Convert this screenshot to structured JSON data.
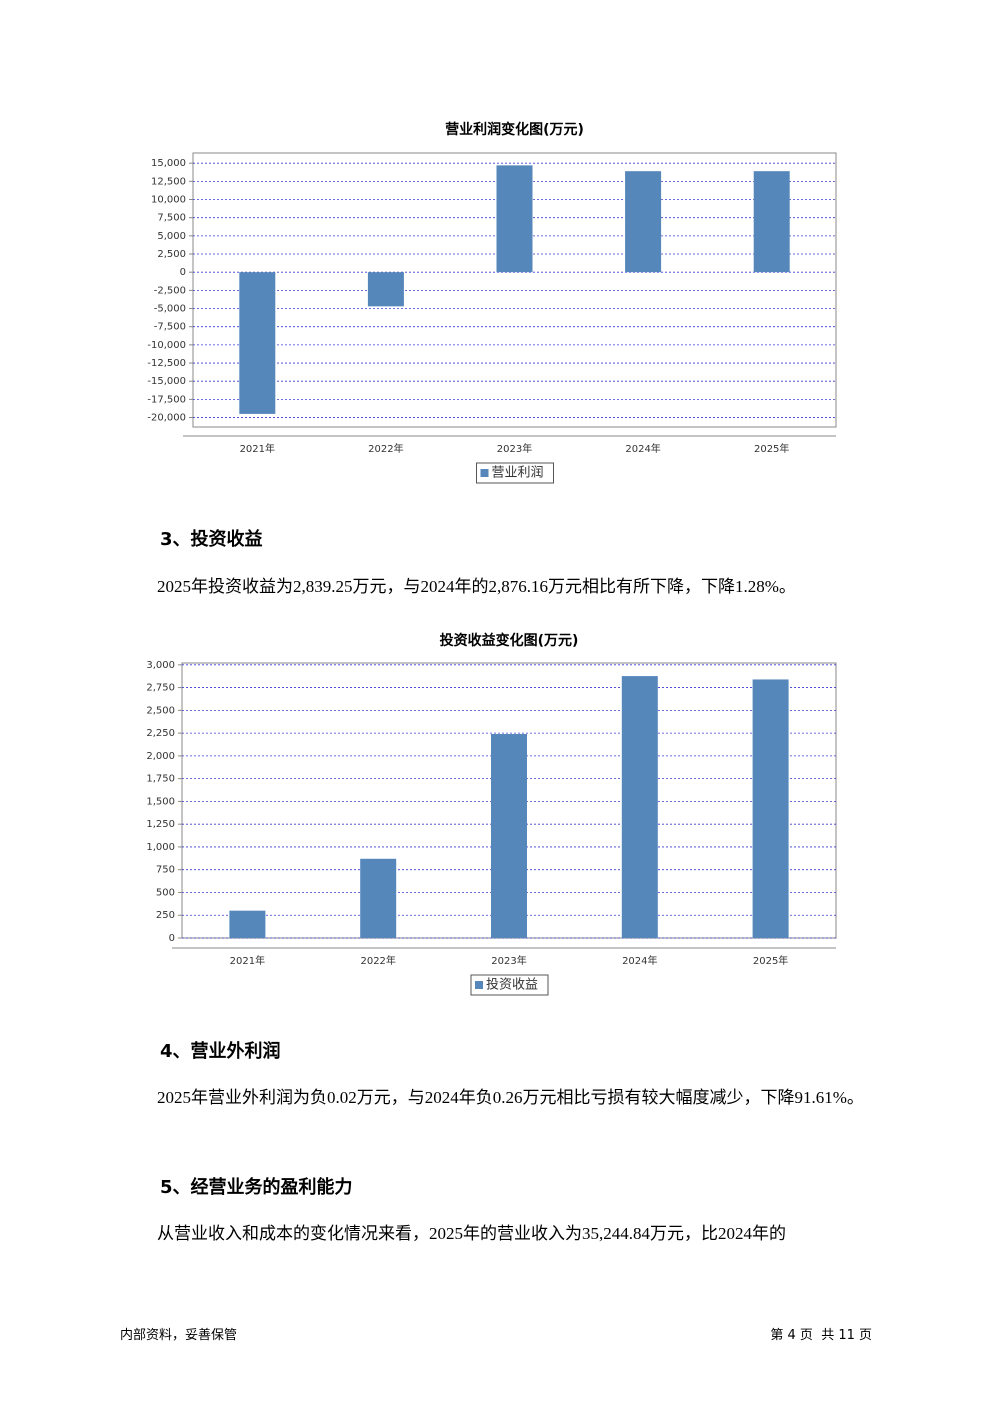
{
  "chart_data": [
    {
      "type": "bar",
      "title": "营业利润变化图(万元)",
      "categories": [
        "2021年",
        "2022年",
        "2023年",
        "2024年",
        "2025年"
      ],
      "series": [
        {
          "name": "营业利润",
          "color": "#5587bb",
          "values": [
            -19500,
            -4700,
            14700,
            13900,
            13900
          ]
        }
      ],
      "ylim": [
        -21300,
        16400
      ],
      "yticks": [
        {
          "value": 15000,
          "label": "15,000"
        },
        {
          "value": 12500,
          "label": "12,500"
        },
        {
          "value": 10000,
          "label": "10,000"
        },
        {
          "value": 7500,
          "label": "7,500"
        },
        {
          "value": 5000,
          "label": "5,000"
        },
        {
          "value": 2500,
          "label": "2,500"
        },
        0,
        {
          "value": -2500,
          "label": "-2,500"
        },
        {
          "value": -5000,
          "label": "-5,000"
        },
        {
          "value": -7500,
          "label": "-7,500"
        },
        {
          "value": -10000,
          "label": "-10,000"
        },
        {
          "value": -12500,
          "label": "-12,500"
        },
        {
          "value": -15000,
          "label": "-15,000"
        },
        {
          "value": -17500,
          "label": "-17,500"
        },
        {
          "value": -20000,
          "label": "-20,000"
        }
      ],
      "grid": true
    },
    {
      "type": "bar",
      "title": "投资收益变化图(万元)",
      "categories": [
        "2021年",
        "2022年",
        "2023年",
        "2024年",
        "2025年"
      ],
      "series": [
        {
          "name": "投资收益",
          "color": "#5587bb",
          "values": [
            300,
            870,
            2240,
            2876.16,
            2839.25
          ]
        }
      ],
      "ylim": [
        0,
        3020
      ],
      "yticks": [
        0,
        250,
        500,
        750,
        {
          "value": 1000,
          "label": "1,000"
        },
        {
          "value": 1250,
          "label": "1,250"
        },
        {
          "value": 1500,
          "label": "1,500"
        },
        {
          "value": 1750,
          "label": "1,750"
        },
        {
          "value": 2000,
          "label": "2,000"
        },
        {
          "value": 2250,
          "label": "2,250"
        },
        {
          "value": 2500,
          "label": "2,500"
        },
        {
          "value": 2750,
          "label": "2,750"
        },
        {
          "value": 3000,
          "label": "3,000"
        }
      ],
      "grid": true
    }
  ],
  "sections": [
    {
      "heading": "3、投资收益",
      "text": "2025年投资收益为2,839.25万元，与2024年的2,876.16万元相比有所下降，下降1.28%。"
    },
    {
      "heading": "4、营业外利润",
      "text": "2025年营业外利润为负0.02万元，与2024年负0.26万元相比亏损有较大幅度减少，下降91.61%。"
    },
    {
      "heading": "5、经营业务的盈利能力",
      "text": "从营业收入和成本的变化情况来看，2025年的营业收入为35,244.84万元，比2024年的"
    }
  ],
  "footer": {
    "left": "内部资料，妥善保管",
    "right": "第 4 页  共 11 页"
  }
}
